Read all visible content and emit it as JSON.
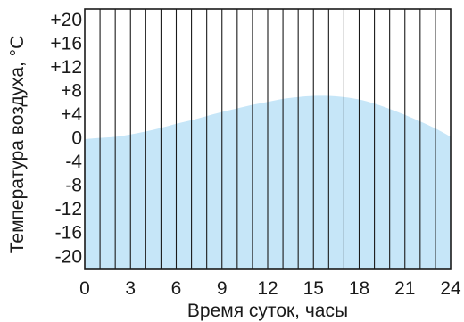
{
  "chart_data": {
    "type": "area",
    "xlabel": "Время суток, часы",
    "ylabel": "Температура воздуха, °C",
    "xlim": [
      0,
      24
    ],
    "ylim": [
      -22,
      22
    ],
    "x_ticks": [
      "0",
      "3",
      "6",
      "9",
      "12",
      "15",
      "18",
      "21",
      "24"
    ],
    "y_ticks": [
      {
        "value": 20,
        "label": "+20"
      },
      {
        "value": 16,
        "label": "+16"
      },
      {
        "value": 12,
        "label": "+12"
      },
      {
        "value": 8,
        "label": "+8"
      },
      {
        "value": 4,
        "label": "+4"
      },
      {
        "value": 0,
        "label": "0"
      },
      {
        "value": -4,
        "label": "-4"
      },
      {
        "value": -8,
        "label": "-8"
      },
      {
        "value": -12,
        "label": "-12"
      },
      {
        "value": -16,
        "label": "-16"
      },
      {
        "value": -20,
        "label": "-20"
      }
    ],
    "grid": "vertical lines every hour",
    "fill_color": "#c6e6f8",
    "grid_color": "#1a1a1a",
    "series": [
      {
        "x": [
          0,
          1,
          2,
          3,
          4,
          5,
          6,
          7,
          8,
          9,
          10,
          11,
          12,
          13,
          14,
          15,
          16,
          17,
          18,
          19,
          20,
          21,
          22,
          23,
          24
        ],
        "y": [
          0,
          0.2,
          0.4,
          0.8,
          1.3,
          1.9,
          2.6,
          3.2,
          3.9,
          4.6,
          5.2,
          5.8,
          6.3,
          6.8,
          7.1,
          7.3,
          7.3,
          7.1,
          6.7,
          6.0,
          5.1,
          4.1,
          3.0,
          1.8,
          0.4
        ]
      }
    ]
  }
}
